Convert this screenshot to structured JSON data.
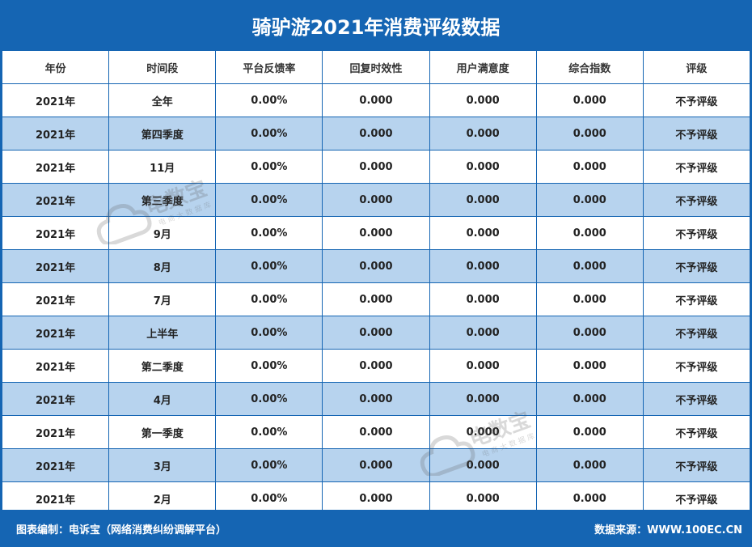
{
  "title": "骑驴游2021年消费评级数据",
  "columns": [
    "年份",
    "时间段",
    "平台反馈率",
    "回复时效性",
    "用户满意度",
    "综合指数",
    "评级"
  ],
  "rows": [
    [
      "2021年",
      "全年",
      "0.00%",
      "0.000",
      "0.000",
      "0.000",
      "不予评级"
    ],
    [
      "2021年",
      "第四季度",
      "0.00%",
      "0.000",
      "0.000",
      "0.000",
      "不予评级"
    ],
    [
      "2021年",
      "11月",
      "0.00%",
      "0.000",
      "0.000",
      "0.000",
      "不予评级"
    ],
    [
      "2021年",
      "第三季度",
      "0.00%",
      "0.000",
      "0.000",
      "0.000",
      "不予评级"
    ],
    [
      "2021年",
      "9月",
      "0.00%",
      "0.000",
      "0.000",
      "0.000",
      "不予评级"
    ],
    [
      "2021年",
      "8月",
      "0.00%",
      "0.000",
      "0.000",
      "0.000",
      "不予评级"
    ],
    [
      "2021年",
      "7月",
      "0.00%",
      "0.000",
      "0.000",
      "0.000",
      "不予评级"
    ],
    [
      "2021年",
      "上半年",
      "0.00%",
      "0.000",
      "0.000",
      "0.000",
      "不予评级"
    ],
    [
      "2021年",
      "第二季度",
      "0.00%",
      "0.000",
      "0.000",
      "0.000",
      "不予评级"
    ],
    [
      "2021年",
      "4月",
      "0.00%",
      "0.000",
      "0.000",
      "0.000",
      "不予评级"
    ],
    [
      "2021年",
      "第一季度",
      "0.00%",
      "0.000",
      "0.000",
      "0.000",
      "不予评级"
    ],
    [
      "2021年",
      "3月",
      "0.00%",
      "0.000",
      "0.000",
      "0.000",
      "不予评级"
    ],
    [
      "2021年",
      "2月",
      "0.00%",
      "0.000",
      "0.000",
      "0.000",
      "不予评级"
    ]
  ],
  "footer": {
    "left": "图表编制：电诉宝（网络消费纠纷调解平台）",
    "right": "数据来源：WWW.100EC.CN"
  },
  "watermark": {
    "icon": "ebrain-cloud-logo-icon",
    "text": "电数宝",
    "subtext": "电商大数据库"
  },
  "colors": {
    "header_bg": "#1565b3",
    "alt_row_bg": "#b7d3ee",
    "border": "#1565b3"
  }
}
